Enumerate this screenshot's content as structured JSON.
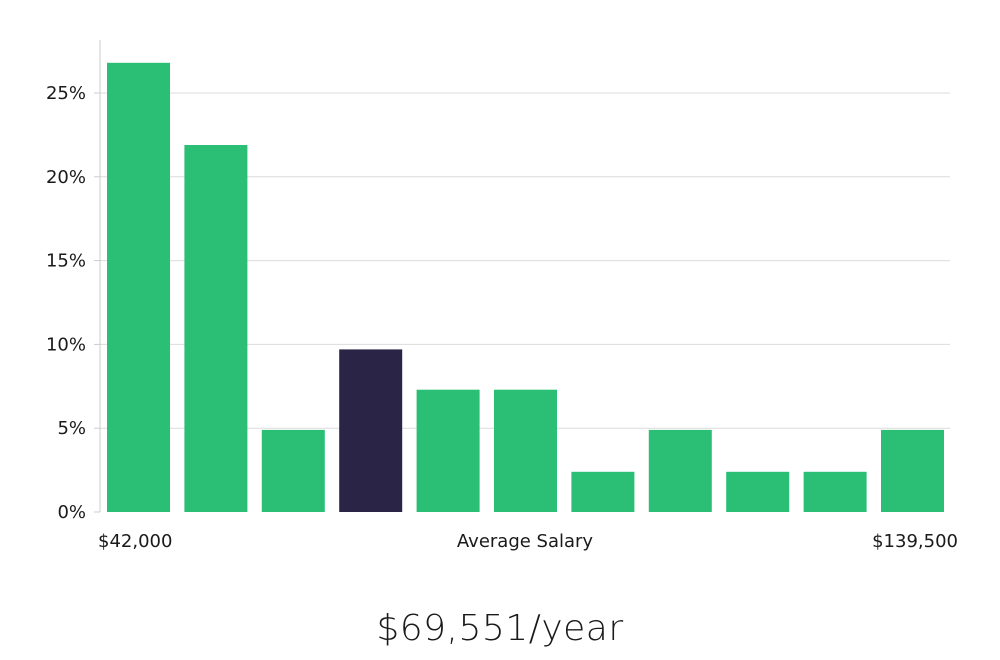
{
  "chart_data": {
    "type": "bar",
    "ylim": [
      0,
      28
    ],
    "yticks": [
      0,
      5,
      10,
      15,
      20,
      25
    ],
    "ytick_labels": [
      "0%",
      "5%",
      "10%",
      "15%",
      "20%",
      "25%"
    ],
    "values": [
      26.8,
      21.9,
      4.9,
      9.7,
      7.3,
      7.3,
      2.4,
      4.9,
      2.4,
      2.4,
      4.9
    ],
    "highlight_index": 3,
    "x_min_label": "$42,000",
    "x_max_label": "$139,500",
    "xlabel": "Average Salary",
    "grid": true,
    "colors": {
      "bar": "#2bbf76",
      "highlight": "#2a2546",
      "grid": "#dcdcdc",
      "axis": "#cccccc"
    }
  },
  "summary": {
    "salary": "$69,551/year"
  }
}
